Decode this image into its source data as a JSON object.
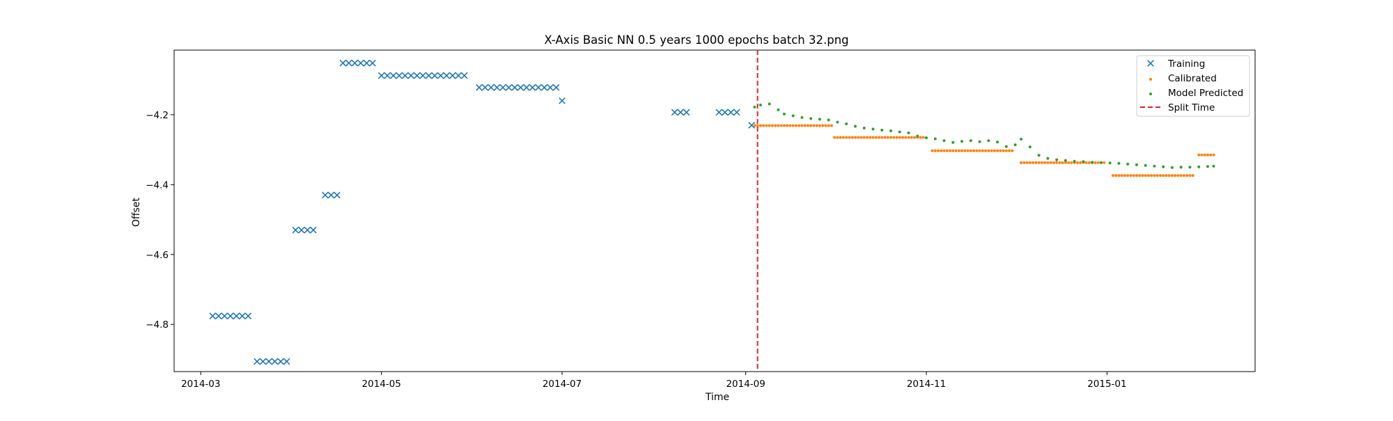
{
  "chart_data": {
    "type": "scatter",
    "title": "X-Axis Basic NN 0.5 years 1000 epochs batch 32.png",
    "xlabel": "Time",
    "ylabel": "Offset",
    "xlim": [
      "2014-02-20",
      "2015-02-20"
    ],
    "ylim": [
      -4.935,
      -4.015
    ],
    "x_ticks": [
      "2014-03",
      "2014-05",
      "2014-07",
      "2014-09",
      "2014-11",
      "2015-01"
    ],
    "y_ticks": [
      -4.8,
      -4.6,
      -4.4,
      -4.2
    ],
    "grid": false,
    "legend_position": "top-right",
    "split_time": "2014-09-05",
    "series": [
      {
        "name": "Training",
        "marker": "x",
        "color": "#1f77b4",
        "points": [
          [
            "2014-03-05",
            -4.776
          ],
          [
            "2014-03-07",
            -4.776
          ],
          [
            "2014-03-09",
            -4.776
          ],
          [
            "2014-03-11",
            -4.776
          ],
          [
            "2014-03-13",
            -4.776
          ],
          [
            "2014-03-15",
            -4.776
          ],
          [
            "2014-03-17",
            -4.776
          ],
          [
            "2014-03-20",
            -4.906
          ],
          [
            "2014-03-22",
            -4.906
          ],
          [
            "2014-03-24",
            -4.906
          ],
          [
            "2014-03-26",
            -4.906
          ],
          [
            "2014-03-28",
            -4.906
          ],
          [
            "2014-03-30",
            -4.906
          ],
          [
            "2014-04-02",
            -4.53
          ],
          [
            "2014-04-04",
            -4.53
          ],
          [
            "2014-04-06",
            -4.53
          ],
          [
            "2014-04-08",
            -4.53
          ],
          [
            "2014-04-12",
            -4.43
          ],
          [
            "2014-04-14",
            -4.43
          ],
          [
            "2014-04-16",
            -4.43
          ],
          [
            "2014-04-18",
            -4.052
          ],
          [
            "2014-04-20",
            -4.052
          ],
          [
            "2014-04-22",
            -4.052
          ],
          [
            "2014-04-24",
            -4.052
          ],
          [
            "2014-04-26",
            -4.052
          ],
          [
            "2014-04-28",
            -4.052
          ],
          [
            "2014-05-01",
            -4.088
          ],
          [
            "2014-05-03",
            -4.088
          ],
          [
            "2014-05-05",
            -4.088
          ],
          [
            "2014-05-07",
            -4.088
          ],
          [
            "2014-05-09",
            -4.088
          ],
          [
            "2014-05-11",
            -4.088
          ],
          [
            "2014-05-13",
            -4.088
          ],
          [
            "2014-05-15",
            -4.088
          ],
          [
            "2014-05-17",
            -4.088
          ],
          [
            "2014-05-19",
            -4.088
          ],
          [
            "2014-05-21",
            -4.088
          ],
          [
            "2014-05-23",
            -4.088
          ],
          [
            "2014-05-25",
            -4.088
          ],
          [
            "2014-05-27",
            -4.088
          ],
          [
            "2014-05-29",
            -4.088
          ],
          [
            "2014-06-03",
            -4.122
          ],
          [
            "2014-06-05",
            -4.122
          ],
          [
            "2014-06-07",
            -4.122
          ],
          [
            "2014-06-09",
            -4.122
          ],
          [
            "2014-06-11",
            -4.122
          ],
          [
            "2014-06-13",
            -4.122
          ],
          [
            "2014-06-15",
            -4.122
          ],
          [
            "2014-06-17",
            -4.122
          ],
          [
            "2014-06-19",
            -4.122
          ],
          [
            "2014-06-21",
            -4.122
          ],
          [
            "2014-06-23",
            -4.122
          ],
          [
            "2014-06-25",
            -4.122
          ],
          [
            "2014-06-27",
            -4.122
          ],
          [
            "2014-06-29",
            -4.122
          ],
          [
            "2014-07-01",
            -4.16
          ],
          [
            "2014-08-08",
            -4.193
          ],
          [
            "2014-08-10",
            -4.193
          ],
          [
            "2014-08-12",
            -4.193
          ],
          [
            "2014-08-23",
            -4.193
          ],
          [
            "2014-08-25",
            -4.193
          ],
          [
            "2014-08-27",
            -4.193
          ],
          [
            "2014-08-29",
            -4.193
          ],
          [
            "2014-09-03",
            -4.23
          ]
        ]
      },
      {
        "name": "Calibrated",
        "marker": "dot",
        "color": "#ff7f0e",
        "segments": [
          {
            "start": "2014-09-04",
            "end": "2014-09-30",
            "value": -4.231
          },
          {
            "start": "2014-10-01",
            "end": "2014-10-31",
            "value": -4.265
          },
          {
            "start": "2014-11-03",
            "end": "2014-11-30",
            "value": -4.303
          },
          {
            "start": "2014-12-03",
            "end": "2014-12-31",
            "value": -4.337
          },
          {
            "start": "2015-01-03",
            "end": "2015-01-30",
            "value": -4.374
          },
          {
            "start": "2015-02-01",
            "end": "2015-02-06",
            "value": -4.315
          }
        ]
      },
      {
        "name": "Model Predicted",
        "marker": "dot",
        "color": "#2ca02c",
        "points": [
          [
            "2014-09-04",
            -4.178
          ],
          [
            "2014-09-06",
            -4.172
          ],
          [
            "2014-09-09",
            -4.169
          ],
          [
            "2014-09-12",
            -4.186
          ],
          [
            "2014-09-14",
            -4.198
          ],
          [
            "2014-09-17",
            -4.203
          ],
          [
            "2014-09-20",
            -4.208
          ],
          [
            "2014-09-23",
            -4.211
          ],
          [
            "2014-09-26",
            -4.213
          ],
          [
            "2014-09-29",
            -4.215
          ],
          [
            "2014-10-02",
            -4.221
          ],
          [
            "2014-10-05",
            -4.226
          ],
          [
            "2014-10-08",
            -4.233
          ],
          [
            "2014-10-11",
            -4.238
          ],
          [
            "2014-10-14",
            -4.241
          ],
          [
            "2014-10-17",
            -4.244
          ],
          [
            "2014-10-20",
            -4.246
          ],
          [
            "2014-10-23",
            -4.249
          ],
          [
            "2014-10-26",
            -4.252
          ],
          [
            "2014-10-29",
            -4.261
          ],
          [
            "2014-11-01",
            -4.266
          ],
          [
            "2014-11-04",
            -4.269
          ],
          [
            "2014-11-07",
            -4.274
          ],
          [
            "2014-11-10",
            -4.279
          ],
          [
            "2014-11-13",
            -4.276
          ],
          [
            "2014-11-16",
            -4.274
          ],
          [
            "2014-11-19",
            -4.277
          ],
          [
            "2014-11-22",
            -4.274
          ],
          [
            "2014-11-25",
            -4.278
          ],
          [
            "2014-11-28",
            -4.291
          ],
          [
            "2014-12-01",
            -4.286
          ],
          [
            "2014-12-03",
            -4.27
          ],
          [
            "2014-12-06",
            -4.292
          ],
          [
            "2014-12-09",
            -4.316
          ],
          [
            "2014-12-12",
            -4.325
          ],
          [
            "2014-12-15",
            -4.329
          ],
          [
            "2014-12-18",
            -4.331
          ],
          [
            "2014-12-21",
            -4.333
          ],
          [
            "2014-12-24",
            -4.334
          ],
          [
            "2014-12-27",
            -4.336
          ],
          [
            "2014-12-30",
            -4.337
          ],
          [
            "2015-01-02",
            -4.338
          ],
          [
            "2015-01-05",
            -4.339
          ],
          [
            "2015-01-08",
            -4.341
          ],
          [
            "2015-01-11",
            -4.343
          ],
          [
            "2015-01-14",
            -4.345
          ],
          [
            "2015-01-17",
            -4.347
          ],
          [
            "2015-01-20",
            -4.349
          ],
          [
            "2015-01-23",
            -4.351
          ],
          [
            "2015-01-26",
            -4.35
          ],
          [
            "2015-01-29",
            -4.35
          ],
          [
            "2015-02-01",
            -4.349
          ],
          [
            "2015-02-04",
            -4.348
          ],
          [
            "2015-02-06",
            -4.347
          ]
        ]
      },
      {
        "name": "Split Time",
        "marker": "dashed-line",
        "color": "#d62728"
      }
    ]
  }
}
